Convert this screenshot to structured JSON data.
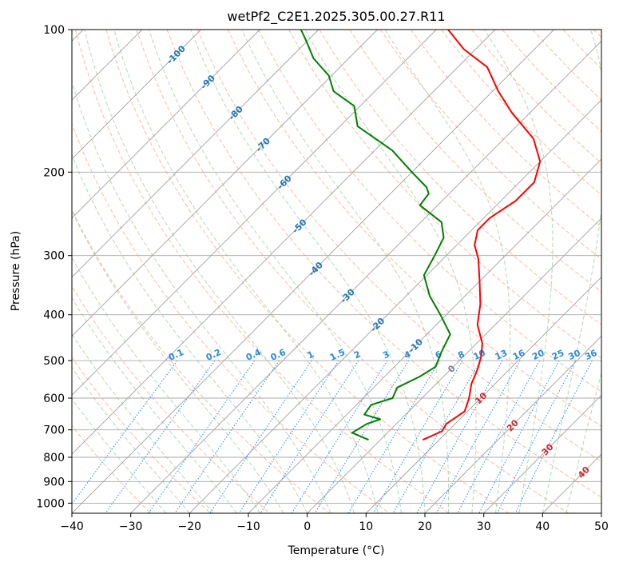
{
  "chart_data": {
    "type": "line",
    "title": "wetPf2_C2E1.2025.305.00.27.R11",
    "xlabel": "Temperature (°C)",
    "ylabel": "Pressure (hPa)",
    "xlim": [
      -40,
      50
    ],
    "ylim": [
      1050,
      100
    ],
    "y_scale": "log",
    "grid": true,
    "x_ticks": [
      -40,
      -30,
      -20,
      -10,
      0,
      10,
      20,
      30,
      40,
      50
    ],
    "y_ticks": [
      100,
      200,
      300,
      400,
      500,
      600,
      700,
      800,
      900,
      1000
    ],
    "colors": {
      "temperature": "#ff0000",
      "dewpoint": "#008000",
      "isotherm": "#a0a0a0",
      "dry_adiabat": "#f7a58a",
      "moist_adiabat": "#93c993",
      "mixing_ratio": "#2a8ae0",
      "isotherm_label": "#1f77b4",
      "mixing_label": "#2a8ae0",
      "warm_label": "#d62728",
      "zero_label": "#808080"
    },
    "series": [
      {
        "key": "temperature",
        "points": [
          [
            7.2,
            735
          ],
          [
            9.0,
            705
          ],
          [
            8.5,
            680
          ],
          [
            9.5,
            640
          ],
          [
            8.0,
            600
          ],
          [
            6.0,
            560
          ],
          [
            4.5,
            520
          ],
          [
            3.0,
            490
          ],
          [
            1.0,
            460
          ],
          [
            -3.0,
            420
          ],
          [
            -6.0,
            380
          ],
          [
            -10.0,
            340
          ],
          [
            -14.0,
            305
          ],
          [
            -17.0,
            285
          ],
          [
            -19.0,
            265
          ],
          [
            -19.0,
            250
          ],
          [
            -17.5,
            230
          ],
          [
            -17.5,
            210
          ],
          [
            -20.0,
            190
          ],
          [
            -25.0,
            170
          ],
          [
            -33.0,
            150
          ],
          [
            -39.0,
            135
          ],
          [
            -45.0,
            120
          ],
          [
            -52.0,
            110
          ],
          [
            -58.0,
            100
          ]
        ]
      },
      {
        "key": "dewpoint",
        "points": [
          [
            -2.0,
            735
          ],
          [
            -6.0,
            710
          ],
          [
            -5.0,
            680
          ],
          [
            -3.5,
            665
          ],
          [
            -7.0,
            650
          ],
          [
            -7.5,
            620
          ],
          [
            -5.0,
            600
          ],
          [
            -6.0,
            570
          ],
          [
            -4.0,
            540
          ],
          [
            -3.0,
            515
          ],
          [
            -4.5,
            480
          ],
          [
            -6.0,
            440
          ],
          [
            -11.0,
            400
          ],
          [
            -16.0,
            365
          ],
          [
            -20.5,
            330
          ],
          [
            -22.0,
            300
          ],
          [
            -23.5,
            275
          ],
          [
            -26.5,
            255
          ],
          [
            -33.0,
            235
          ],
          [
            -33.5,
            222
          ],
          [
            -35.0,
            215
          ],
          [
            -40.0,
            200
          ],
          [
            -47.0,
            180
          ],
          [
            -57.0,
            160
          ],
          [
            -61.0,
            145
          ],
          [
            -67.0,
            135
          ],
          [
            -70.5,
            125
          ],
          [
            -76.0,
            115
          ],
          [
            -80.5,
            105
          ],
          [
            -83.0,
            100
          ]
        ]
      }
    ],
    "isotherm_labels": [
      "-100",
      "-90",
      "-80",
      "-70",
      "-60",
      "-50",
      "-40",
      "-30",
      "-20",
      "-10"
    ],
    "mixing_ratio_labels": [
      "0.1",
      "0.2",
      "0.4",
      "0.6",
      "1",
      "1.5",
      "2",
      "3",
      "4",
      "6",
      "8",
      "10",
      "13",
      "16",
      "20",
      "25",
      "30",
      "36"
    ],
    "warm_labels": [
      "0",
      "10",
      "20",
      "30",
      "40"
    ]
  }
}
